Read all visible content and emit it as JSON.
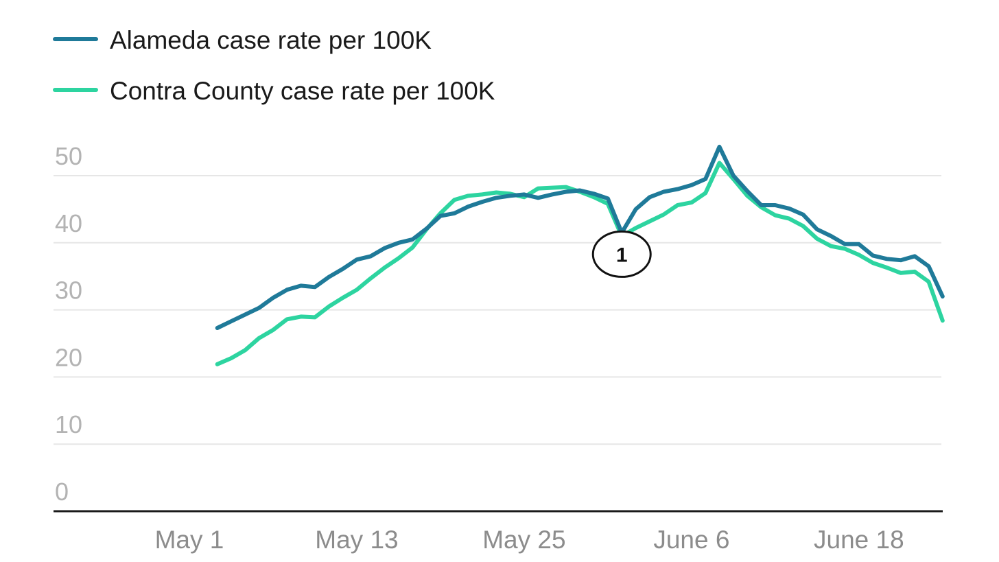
{
  "chart_data": {
    "type": "line",
    "title": "",
    "xlabel": "",
    "ylabel": "",
    "ylim": [
      0,
      50
    ],
    "yticks": [
      0,
      10,
      20,
      30,
      40,
      50
    ],
    "xticks": [
      {
        "label": "May 1",
        "value": "2021-05-01"
      },
      {
        "label": "May 13",
        "value": "2021-05-13"
      },
      {
        "label": "May 25",
        "value": "2021-05-25"
      },
      {
        "label": "June 6",
        "value": "2021-06-06"
      },
      {
        "label": "June 18",
        "value": "2021-06-18"
      }
    ],
    "x_start": "2021-05-03",
    "grid": true,
    "legend_position": "top-left",
    "series": [
      {
        "name": "Alameda case rate per 100K",
        "color": "#1f7a99",
        "values": [
          27.3,
          28.3,
          29.3,
          30.3,
          31.8,
          33.0,
          33.6,
          33.4,
          34.9,
          36.1,
          37.5,
          38.0,
          39.2,
          40.0,
          40.5,
          42.1,
          44.0,
          44.4,
          45.4,
          46.1,
          46.7,
          47.0,
          47.2,
          46.7,
          47.2,
          47.6,
          47.8,
          47.3,
          46.6,
          41.5,
          45.0,
          46.8,
          47.6,
          48.0,
          48.6,
          49.5,
          54.3,
          50.0,
          47.7,
          45.6,
          45.6,
          45.1,
          44.2,
          42.0,
          41.0,
          39.8,
          39.8,
          38.1,
          37.6,
          37.4,
          38.0,
          36.5,
          32.0
        ]
      },
      {
        "name": "Contra County case rate per 100K",
        "color": "#2dd4a0",
        "values": [
          21.9,
          22.8,
          24.0,
          25.8,
          27.0,
          28.6,
          29.0,
          28.9,
          30.5,
          31.8,
          33.0,
          34.7,
          36.3,
          37.7,
          39.3,
          42.0,
          44.4,
          46.4,
          47.0,
          47.2,
          47.5,
          47.3,
          46.8,
          48.1,
          48.2,
          48.3,
          47.6,
          46.8,
          45.8,
          41.0,
          42.2,
          43.2,
          44.2,
          45.6,
          46.0,
          47.4,
          51.9,
          49.5,
          47.0,
          45.3,
          44.1,
          43.6,
          42.5,
          40.6,
          39.5,
          39.1,
          38.2,
          37.0,
          36.3,
          35.5,
          35.7,
          34.2,
          28.4
        ]
      }
    ],
    "annotations": [
      {
        "label": "1",
        "date": "2021-06-01",
        "value": 38.3
      }
    ]
  }
}
